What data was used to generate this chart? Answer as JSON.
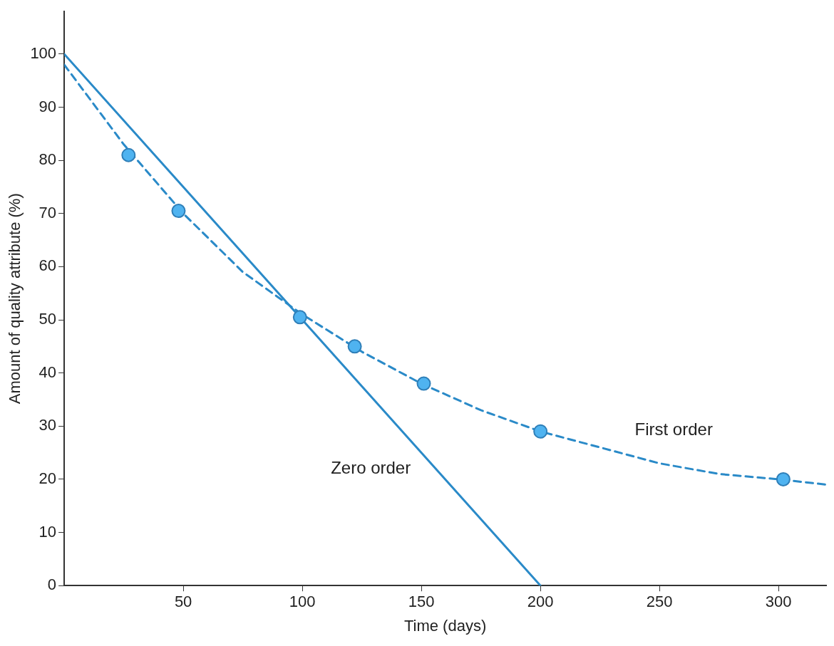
{
  "chart_data": {
    "type": "line",
    "xlabel": "Time (days)",
    "ylabel": "Amount of quality attribute (%)",
    "xlim": [
      0,
      320
    ],
    "xticks": [
      50,
      100,
      150,
      200,
      250,
      300
    ],
    "ylim": [
      0,
      108
    ],
    "yticks": [
      0,
      10,
      20,
      30,
      40,
      50,
      60,
      70,
      80,
      90,
      100
    ],
    "grid": false,
    "legend": false,
    "series": [
      {
        "name": "Zero order",
        "color": "#2a8ac8",
        "line_style": "solid",
        "marker": "none",
        "x": [
          0,
          200
        ],
        "values": [
          100,
          0
        ]
      },
      {
        "name": "First order",
        "color": "#2a8ac8",
        "line_style": "dashed",
        "marker": "none",
        "x": [
          0,
          25,
          50,
          75,
          100,
          125,
          150,
          175,
          200,
          225,
          250,
          275,
          300,
          320
        ],
        "values": [
          98,
          83,
          70,
          59,
          51,
          44,
          38,
          33,
          29,
          26,
          23,
          21,
          20,
          19
        ]
      },
      {
        "type": "scatter",
        "color": "#4fb3f0",
        "marker": "circle",
        "x": [
          27,
          48,
          99,
          122,
          151,
          200,
          302
        ],
        "values": [
          81,
          70.5,
          50.5,
          45,
          38,
          29,
          20
        ]
      }
    ]
  }
}
